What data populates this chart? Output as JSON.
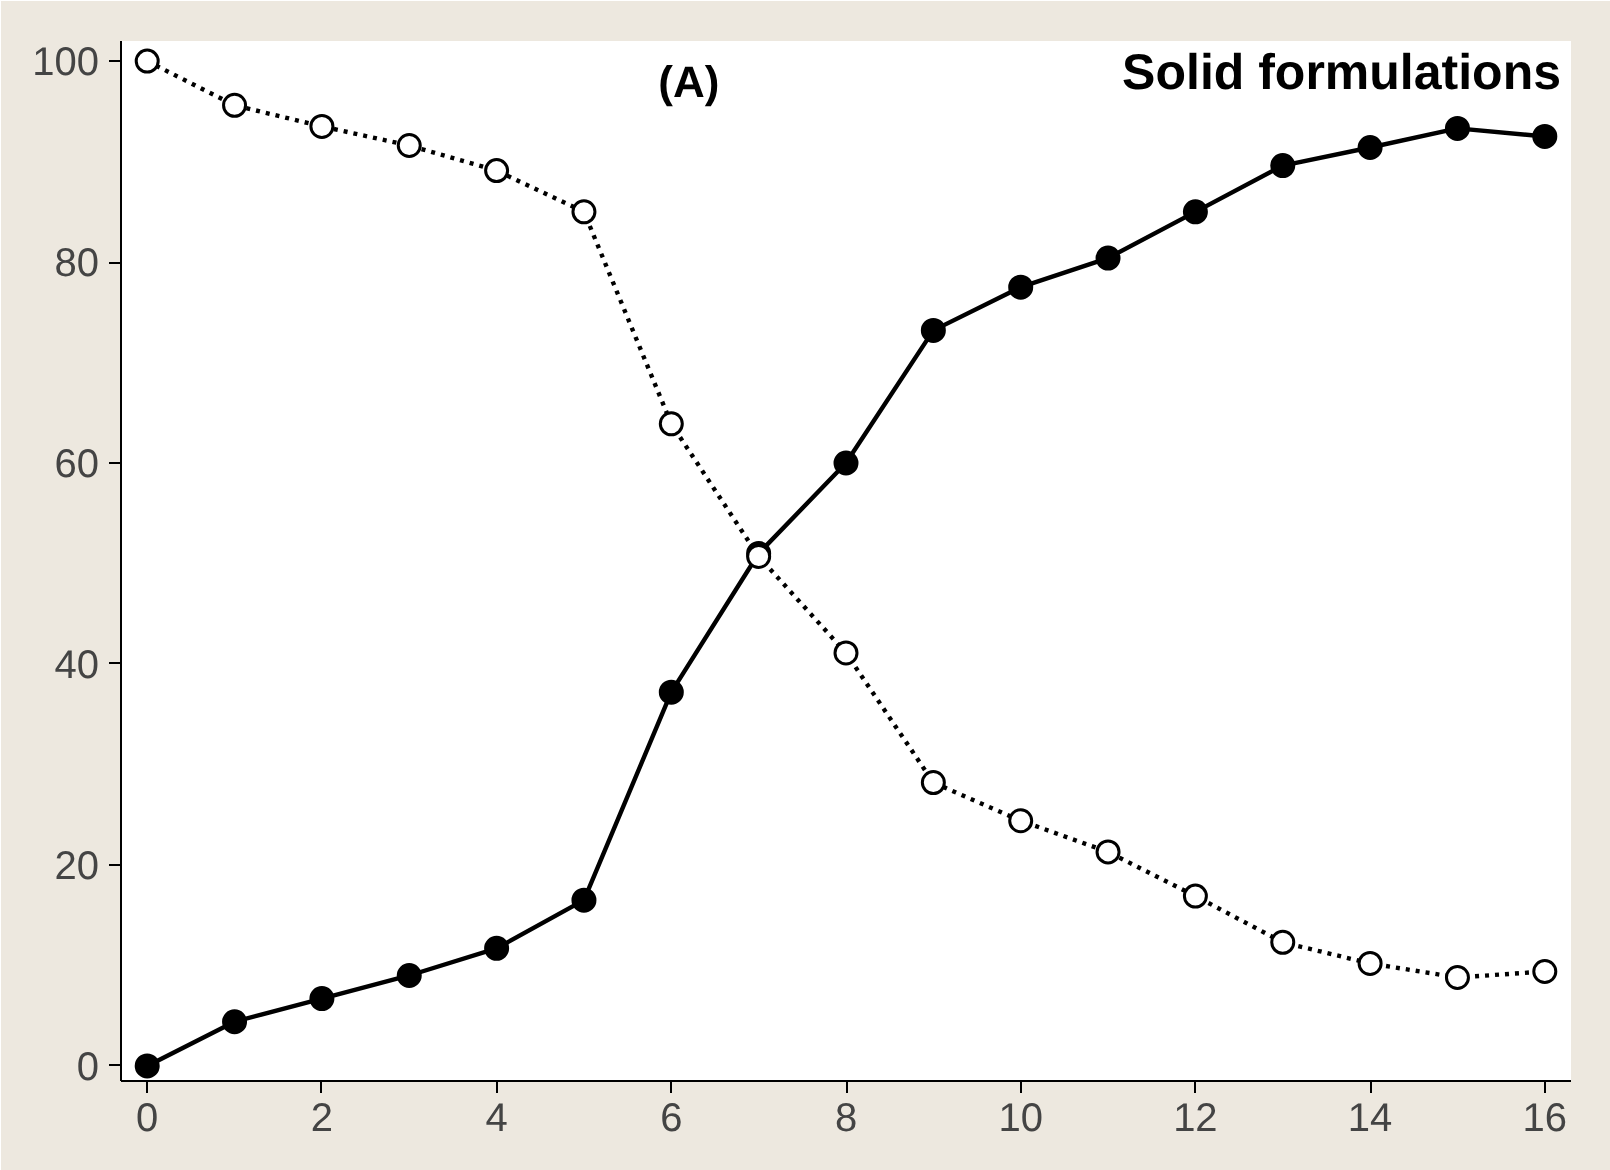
{
  "chart_data": {
    "type": "line",
    "title": "Solid formulations",
    "annotations": [
      "(A)"
    ],
    "x": [
      0,
      1,
      2,
      3,
      4,
      5,
      6,
      7,
      8,
      9,
      10,
      11,
      12,
      13,
      14,
      15,
      16
    ],
    "series": [
      {
        "color": "#000000",
        "line_style": "solid",
        "values": [
          0,
          4.4,
          6.7,
          9,
          11.7,
          16.5,
          37.2,
          51,
          60,
          73.2,
          77.5,
          80.4,
          85,
          89.6,
          91.4,
          93.3,
          92.5
        ]
      },
      {
        "color": "#000000",
        "line_style": "dotted",
        "values": [
          100,
          95.6,
          93.5,
          91.6,
          89.1,
          85,
          63.9,
          50.7,
          41.1,
          28.2,
          24.4,
          21.3,
          16.9,
          12.3,
          10.2,
          8.8,
          9.4
        ]
      }
    ],
    "marker": "circle",
    "xlim": [
      -0.3,
      16.3
    ],
    "ylim": [
      -1.5,
      102
    ],
    "xticks": [
      0,
      2,
      4,
      6,
      8,
      10,
      12,
      14,
      16
    ],
    "yticks": [
      0,
      20,
      40,
      60,
      80,
      100
    ],
    "grid": false
  }
}
